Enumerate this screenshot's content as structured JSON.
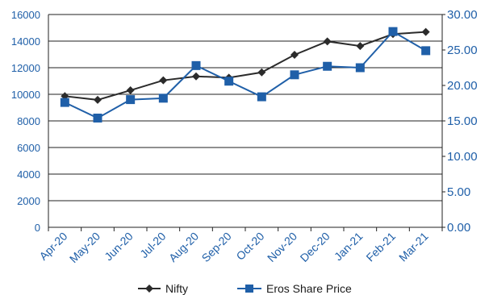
{
  "chart_data": {
    "type": "line",
    "categories": [
      "Apr-20",
      "May-20",
      "Jun-20",
      "Jul-20",
      "Aug-20",
      "Sep-20",
      "Oct-20",
      "Nov-20",
      "Dec-20",
      "Jan-21",
      "Feb-21",
      "Mar-21"
    ],
    "series": [
      {
        "name": "Nifty",
        "axis": "left",
        "color": "#2b2b2b",
        "marker": "diamond",
        "values": [
          9860,
          9580,
          10300,
          11050,
          11350,
          11250,
          11650,
          12970,
          13980,
          13630,
          14530,
          14690
        ]
      },
      {
        "name": "Eros Share Price",
        "axis": "right",
        "color": "#1f5fa8",
        "marker": "square",
        "values": [
          17.6,
          15.4,
          18.0,
          18.2,
          22.8,
          20.6,
          18.4,
          21.5,
          22.7,
          22.5,
          27.6,
          24.9
        ]
      }
    ],
    "y_left": {
      "ylim": [
        0,
        16000
      ],
      "ticks": [
        "0",
        "2000",
        "4000",
        "6000",
        "8000",
        "10000",
        "12000",
        "14000",
        "16000"
      ]
    },
    "y_right": {
      "ylim": [
        0,
        30
      ],
      "ticks": [
        "0.00",
        "5.00",
        "10.00",
        "15.00",
        "20.00",
        "25.00",
        "30.00"
      ]
    },
    "grid": true,
    "legend_position": "bottom"
  }
}
